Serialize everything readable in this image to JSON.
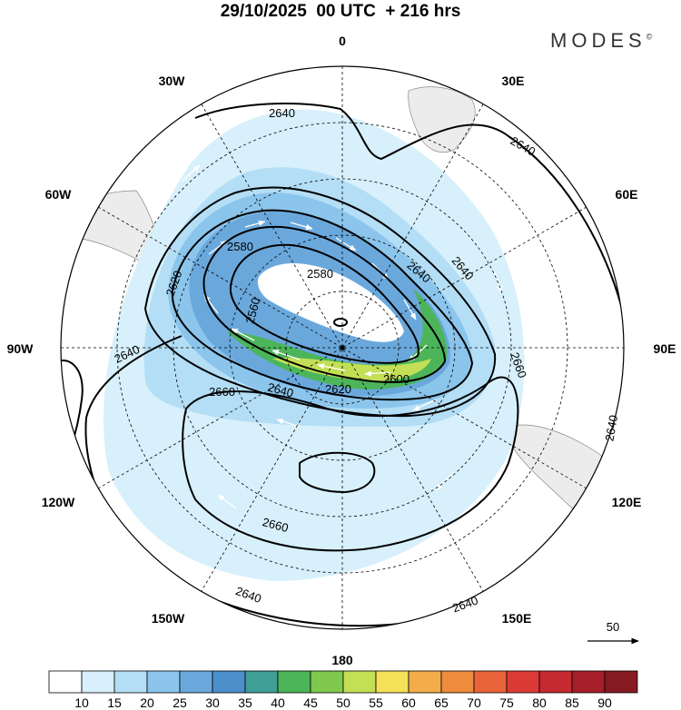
{
  "title": "29/10/2025  00 UTC  + 216 hrs",
  "brand": "MODES",
  "brand_mark": "©",
  "longitude_labels": {
    "lon_0": "0",
    "lon_30e": "30E",
    "lon_60e": "60E",
    "lon_90e": "90E",
    "lon_120e": "120E",
    "lon_150e": "150E",
    "lon_180": "180",
    "lon_150w": "150W",
    "lon_120w": "120W",
    "lon_90w": "90W",
    "lon_60w": "60W",
    "lon_30w": "30W"
  },
  "contour_labels": {
    "c1": "2640",
    "c2": "2640",
    "c3": "2640",
    "c4": "2640",
    "c5": "2640",
    "c6": "2640",
    "c7": "2640",
    "c8": "2640",
    "c9": "2620",
    "c10": "2620",
    "c11": "2600",
    "c12": "2580",
    "c13": "2580",
    "c14": "2560",
    "c15": "2660",
    "c16": "2660",
    "c17": "2660",
    "c18": "2640"
  },
  "vector_reference": "50",
  "colorbar": {
    "labels": [
      "10",
      "15",
      "20",
      "25",
      "30",
      "35",
      "40",
      "45",
      "50",
      "55",
      "60",
      "65",
      "70",
      "75",
      "80",
      "85",
      "90"
    ],
    "colors": [
      "#ffffff",
      "#d7f0fb",
      "#b4def5",
      "#8cc5ec",
      "#6aa8dc",
      "#4a8fca",
      "#3e9f96",
      "#4cb55a",
      "#7ec84d",
      "#c3df56",
      "#f5e05a",
      "#f2ad4a",
      "#ee8b3d",
      "#e9633a",
      "#dc3b35",
      "#c42a30",
      "#a61e28",
      "#861a22"
    ]
  }
}
